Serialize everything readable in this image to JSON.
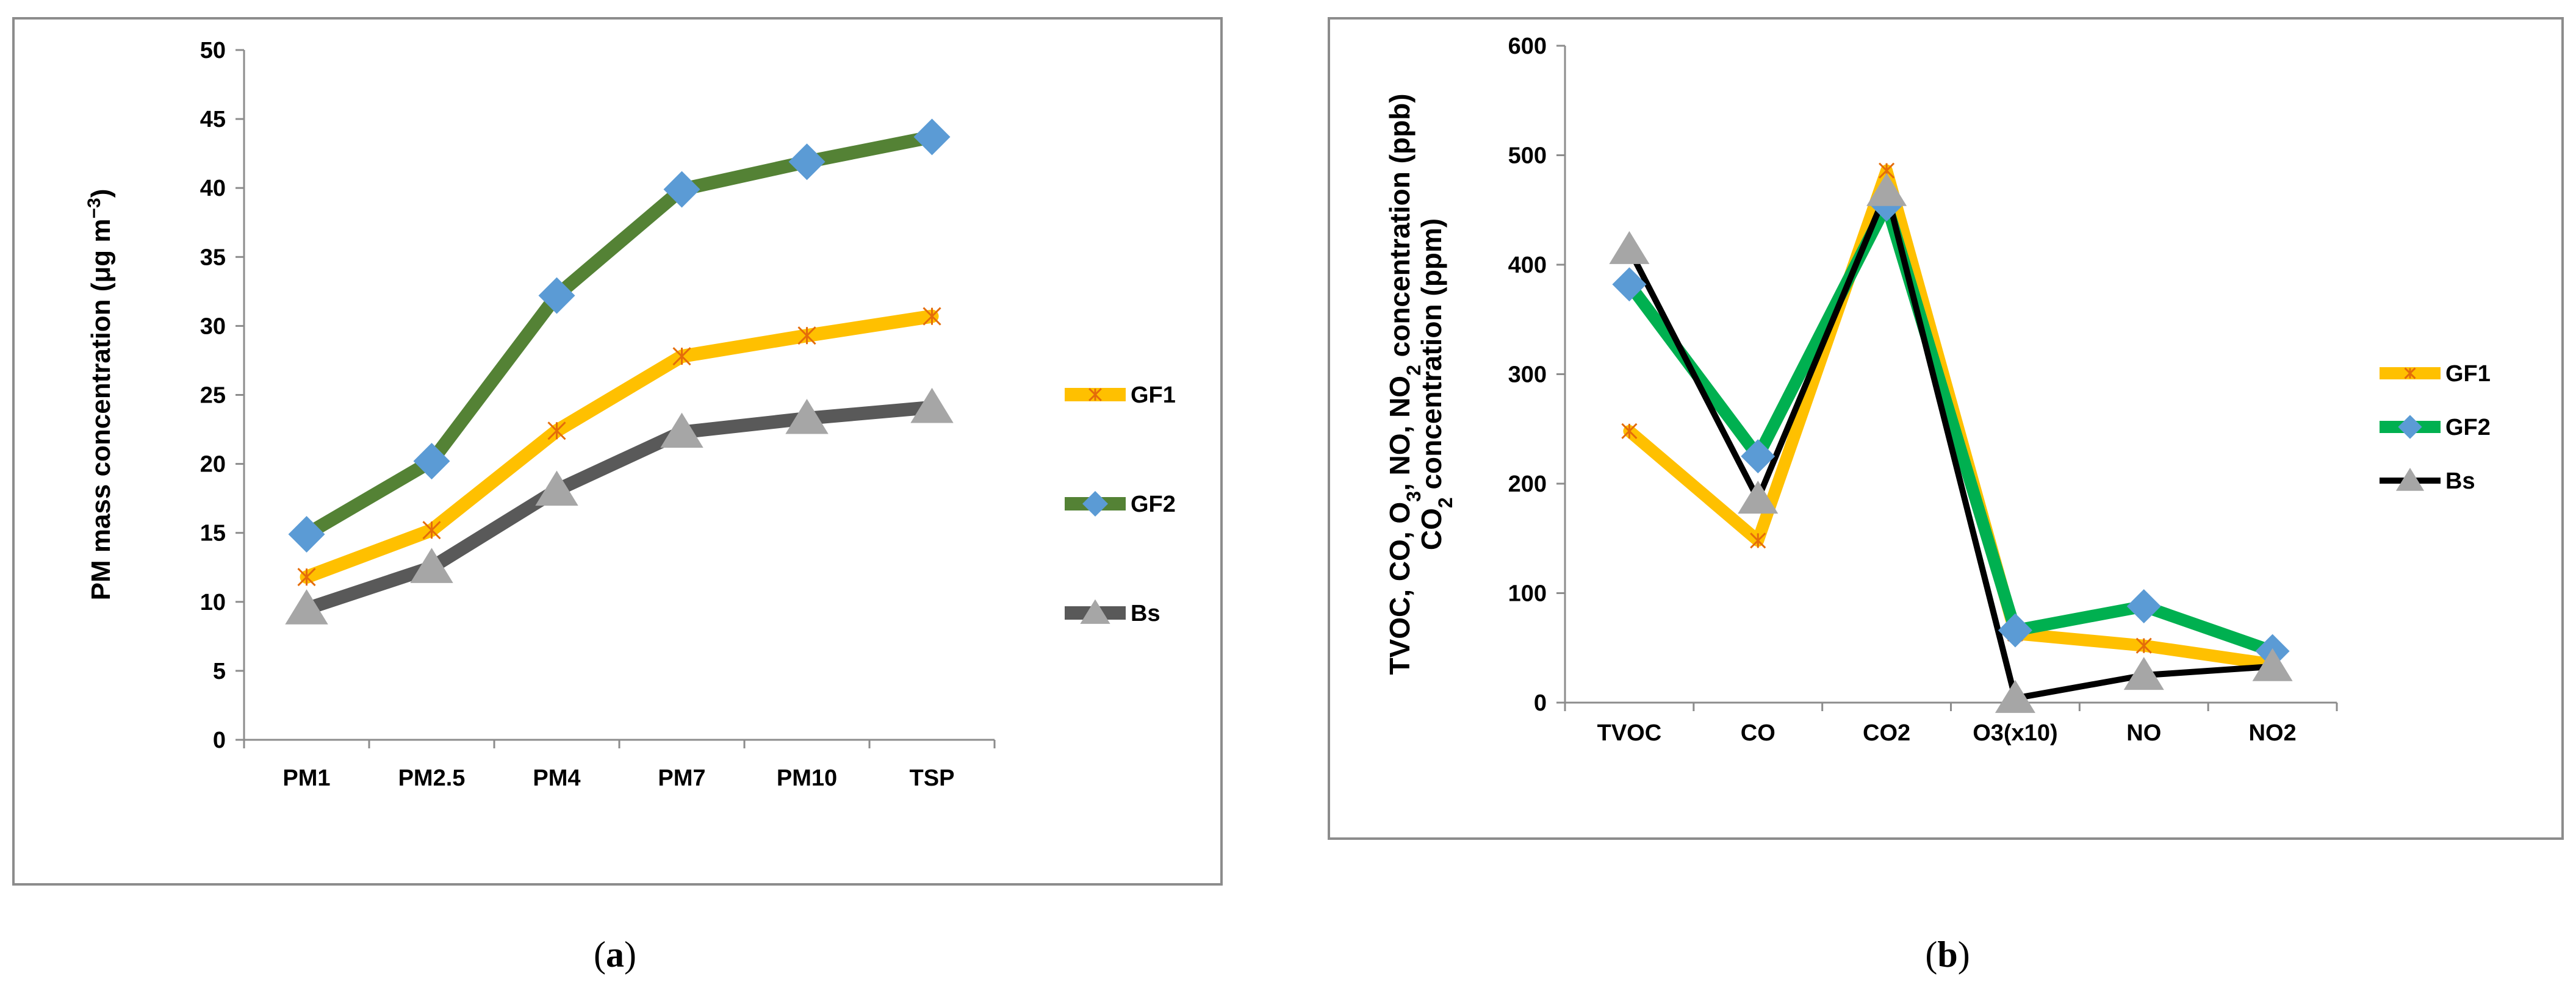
{
  "chart_data": [
    {
      "type": "line",
      "panel_label": "a",
      "ylabel": "PM mass concentration (μg m⁻³)",
      "ylabel_main": "PM mass concentration (μg m",
      "ylabel_sup": "−3",
      "ylabel_close": ")",
      "ylim": [
        0,
        50
      ],
      "yticks": [
        0,
        5,
        10,
        15,
        20,
        25,
        30,
        35,
        40,
        45,
        50
      ],
      "categories": [
        "PM1",
        "PM2.5",
        "PM4",
        "PM7",
        "PM10",
        "TSP"
      ],
      "legend_position": "right",
      "grid": false,
      "series": [
        {
          "name": "GF1",
          "values": [
            11.8,
            15.2,
            22.4,
            27.8,
            29.3,
            30.7
          ],
          "color": "#FFC000",
          "marker": "star"
        },
        {
          "name": "GF2",
          "values": [
            14.9,
            20.2,
            32.2,
            39.9,
            41.9,
            43.7
          ],
          "color": "#548235",
          "marker": "diamond",
          "marker_color": "#5B9BD5"
        },
        {
          "name": "Bs",
          "values": [
            9.5,
            12.5,
            18.1,
            22.3,
            23.3,
            24.1
          ],
          "color": "#595959",
          "marker": "triangle",
          "marker_color": "#A6A6A6"
        }
      ]
    },
    {
      "type": "line",
      "panel_label": "b",
      "ylabel": "TVOC, CO, O₃, NO, NO₂ concentration (ppb) / CO₂ concentration (ppm)",
      "ylabel_line1": [
        "TVOC, CO, O",
        "3",
        ", NO, NO",
        "2",
        " concentration (ppb)"
      ],
      "ylabel_line2": [
        "CO",
        "2",
        " concentration (ppm)"
      ],
      "ylim": [
        0,
        600
      ],
      "yticks": [
        0,
        100,
        200,
        300,
        400,
        500,
        600
      ],
      "categories": [
        "TVOC",
        "CO",
        "CO2",
        "O3(x10)",
        "NO",
        "NO2"
      ],
      "legend_position": "right",
      "grid": false,
      "series": [
        {
          "name": "GF1",
          "values": [
            248,
            148,
            486,
            63,
            52,
            35
          ],
          "color": "#FFC000",
          "marker": "star"
        },
        {
          "name": "GF2",
          "values": [
            382,
            225,
            455,
            66,
            88,
            47
          ],
          "color": "#00B050",
          "marker": "diamond",
          "marker_color": "#5B9BD5"
        },
        {
          "name": "Bs",
          "values": [
            414,
            186,
            467,
            4,
            25,
            33
          ],
          "color": "#000000",
          "marker": "triangle",
          "marker_color": "#A6A6A6"
        }
      ]
    }
  ]
}
